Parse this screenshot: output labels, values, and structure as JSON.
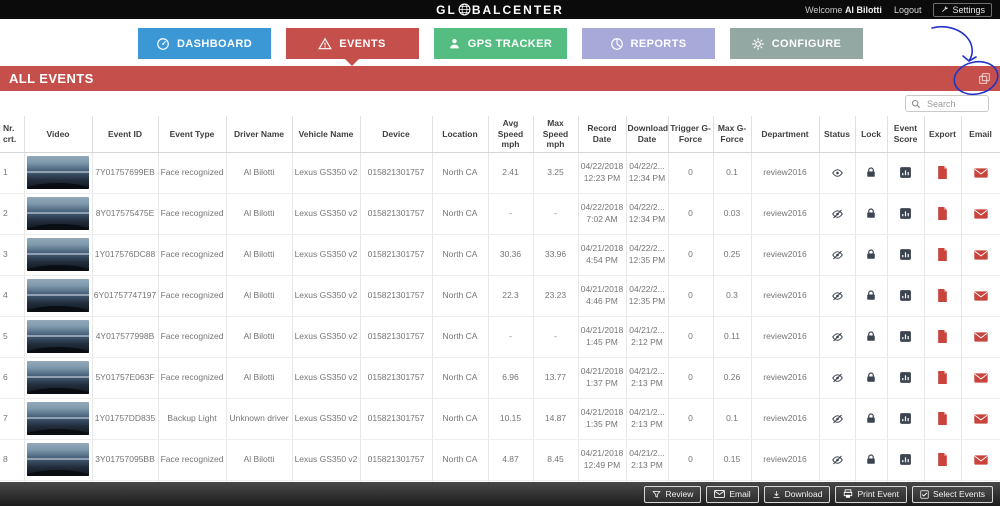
{
  "header": {
    "logo_left": "GL",
    "logo_right": "BALCENTER",
    "welcome": "Welcome",
    "user": "Al Bilotti",
    "logout": "Logout",
    "settings": "Settings"
  },
  "nav": {
    "tabs": [
      {
        "label": "DASHBOARD",
        "color": "#3b98d5",
        "active": false
      },
      {
        "label": "EVENTS",
        "color": "#c5504b",
        "active": true
      },
      {
        "label": "GPS TRACKER",
        "color": "#56bd82",
        "active": false
      },
      {
        "label": "REPORTS",
        "color": "#a7aad9",
        "active": false
      },
      {
        "label": "CONFIGURE",
        "color": "#93a7a3",
        "active": false
      }
    ]
  },
  "banner": {
    "title": "ALL EVENTS",
    "color": "#c5504b"
  },
  "search": {
    "placeholder": "Search"
  },
  "table": {
    "columns": [
      "Nr. crt.",
      "Video",
      "Event ID",
      "Event Type",
      "Driver Name",
      "Vehicle Name",
      "Device",
      "Location",
      "Avg Speed mph",
      "Max Speed mph",
      "Record Date",
      "Download Date",
      "Trigger G-Force",
      "Max G-Force",
      "Department",
      "Status",
      "Lock",
      "Event Score",
      "Export",
      "Email"
    ],
    "rows": [
      {
        "nr": "1",
        "event_id": "7Y01757699EB",
        "event_type": "Face recognized",
        "driver": "Al Bilotti",
        "vehicle": "Lexus GS350 v2",
        "device": "015821301757",
        "location": "North CA",
        "avg_speed": "2.41",
        "max_speed": "3.25",
        "record_date": "04/22/2018\n12:23 PM",
        "download_date": "04/22/2...\n12:34 PM",
        "trigger_g": "0",
        "max_g": "0.1",
        "department": "review2016",
        "status": "visible"
      },
      {
        "nr": "2",
        "event_id": "8Y017575475E",
        "event_type": "Face recognized",
        "driver": "Al Bilotti",
        "vehicle": "Lexus GS350 v2",
        "device": "015821301757",
        "location": "North CA",
        "avg_speed": "-",
        "max_speed": "-",
        "record_date": "04/22/2018\n7:02 AM",
        "download_date": "04/22/2...\n12:34 PM",
        "trigger_g": "0",
        "max_g": "0.03",
        "department": "review2016",
        "status": "hidden"
      },
      {
        "nr": "3",
        "event_id": "1Y017576DC88",
        "event_type": "Face recognized",
        "driver": "Al Bilotti",
        "vehicle": "Lexus GS350 v2",
        "device": "015821301757",
        "location": "North CA",
        "avg_speed": "30.36",
        "max_speed": "33.96",
        "record_date": "04/21/2018\n4:54 PM",
        "download_date": "04/22/2...\n12:35 PM",
        "trigger_g": "0",
        "max_g": "0.25",
        "department": "review2016",
        "status": "hidden"
      },
      {
        "nr": "4",
        "event_id": "6Y01757747197",
        "event_type": "Face recognized",
        "driver": "Al Bilotti",
        "vehicle": "Lexus GS350 v2",
        "device": "015821301757",
        "location": "North CA",
        "avg_speed": "22.3",
        "max_speed": "23.23",
        "record_date": "04/21/2018\n4:46 PM",
        "download_date": "04/22/2...\n12:35 PM",
        "trigger_g": "0",
        "max_g": "0.3",
        "department": "review2016",
        "status": "hidden"
      },
      {
        "nr": "5",
        "event_id": "4Y017577998B",
        "event_type": "Face recognized",
        "driver": "Al Bilotti",
        "vehicle": "Lexus GS350 v2",
        "device": "015821301757",
        "location": "North CA",
        "avg_speed": "-",
        "max_speed": "-",
        "record_date": "04/21/2018\n1:45 PM",
        "download_date": "04/21/2...\n2:12 PM",
        "trigger_g": "0",
        "max_g": "0.11",
        "department": "review2016",
        "status": "hidden"
      },
      {
        "nr": "6",
        "event_id": "5Y01757E063F",
        "event_type": "Face recognized",
        "driver": "Al Bilotti",
        "vehicle": "Lexus GS350 v2",
        "device": "015821301757",
        "location": "North CA",
        "avg_speed": "6.96",
        "max_speed": "13.77",
        "record_date": "04/21/2018\n1:37 PM",
        "download_date": "04/21/2...\n2:13 PM",
        "trigger_g": "0",
        "max_g": "0.26",
        "department": "review2016",
        "status": "hidden"
      },
      {
        "nr": "7",
        "event_id": "1Y01757DD835",
        "event_type": "Backup Light",
        "driver": "Unknown driver",
        "vehicle": "Lexus GS350 v2",
        "device": "015821301757",
        "location": "North CA",
        "avg_speed": "10.15",
        "max_speed": "14.87",
        "record_date": "04/21/2018\n1:35 PM",
        "download_date": "04/21/2...\n2:13 PM",
        "trigger_g": "0",
        "max_g": "0.1",
        "department": "review2016",
        "status": "hidden"
      },
      {
        "nr": "8",
        "event_id": "3Y01757095BB",
        "event_type": "Face recognized",
        "driver": "Al Bilotti",
        "vehicle": "Lexus GS350 v2",
        "device": "015821301757",
        "location": "North CA",
        "avg_speed": "4.87",
        "max_speed": "8.45",
        "record_date": "04/21/2018\n12:49 PM",
        "download_date": "04/21/2...\n2:13 PM",
        "trigger_g": "0",
        "max_g": "0.15",
        "department": "review2016",
        "status": "hidden"
      },
      {
        "nr": "",
        "event_id": "",
        "event_type": "",
        "driver": "",
        "vehicle": "",
        "device": "",
        "location": "",
        "avg_speed": "",
        "max_speed": "",
        "record_date": "",
        "download_date": "",
        "trigger_g": "",
        "max_g": "",
        "department": "",
        "status": "hidden"
      }
    ]
  },
  "footer": {
    "buttons": [
      {
        "label": "Review"
      },
      {
        "label": "Email"
      },
      {
        "label": "Download"
      },
      {
        "label": "Print Event"
      },
      {
        "label": "Select Events"
      }
    ]
  }
}
